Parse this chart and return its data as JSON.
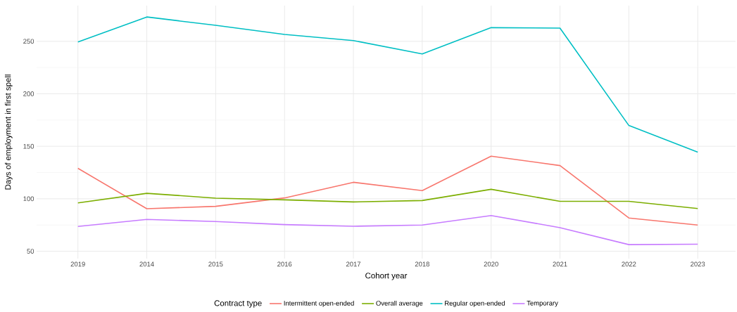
{
  "chart_data": {
    "type": "line",
    "xlabel": "Cohort year",
    "ylabel": "Days of employment in first spell",
    "legend_title": "Contract type",
    "categories": [
      "2019",
      "2014",
      "2015",
      "2016",
      "2017",
      "2018",
      "2020",
      "2021",
      "2022",
      "2023"
    ],
    "series": [
      {
        "name": "Intermittent open-ended",
        "color": "#f8766d",
        "values": [
          129,
          90.5,
          92.8,
          100.8,
          115.7,
          107.8,
          140.6,
          131.6,
          81.7,
          75
        ]
      },
      {
        "name": "Overall average",
        "color": "#7cae00",
        "values": [
          96.1,
          105.2,
          100.6,
          99,
          97,
          98.3,
          109,
          97.6,
          97.6,
          90.7
        ]
      },
      {
        "name": "Regular open-ended",
        "color": "#00bfc4",
        "values": [
          249.3,
          273.2,
          265.2,
          256.5,
          250.7,
          238,
          263,
          262.6,
          169.8,
          144.4
        ]
      },
      {
        "name": "Temporary",
        "color": "#c77cff",
        "values": [
          73.6,
          80.3,
          78.3,
          75.4,
          73.8,
          75,
          84,
          72.5,
          56.3,
          56.7
        ]
      }
    ],
    "ylim": [
      43,
      284
    ],
    "yticks": [
      50,
      100,
      150,
      200,
      250
    ],
    "grid": true,
    "legend": "bottom",
    "marker": "none",
    "line_style": "solid"
  }
}
